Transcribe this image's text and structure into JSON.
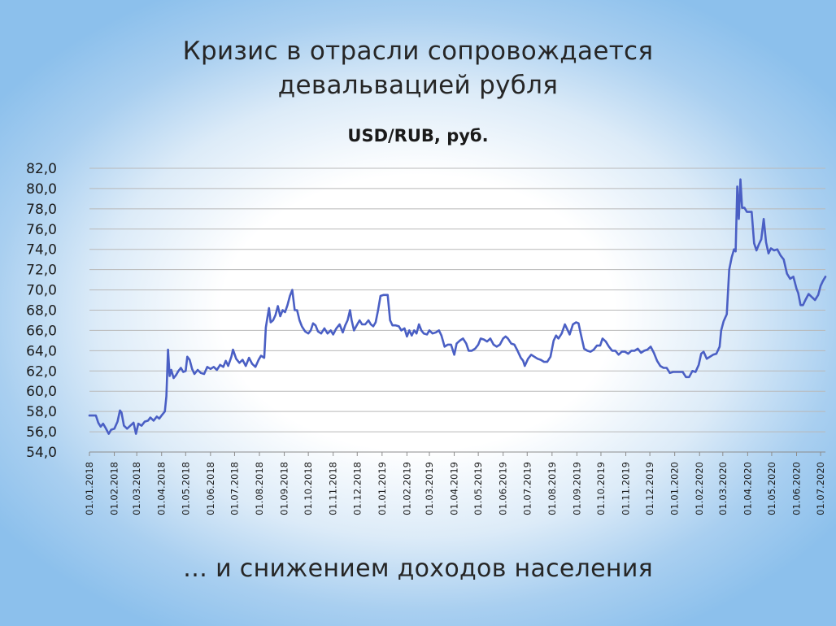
{
  "slide": {
    "title_line1": "Кризис в отрасли сопровождается",
    "title_line2": "девальвацией рубля",
    "footer": "… и снижением доходов населения"
  },
  "colors": {
    "line": "#4a5fc4",
    "grid": "#b9b9b9",
    "axis": "#8c8c8c"
  },
  "chart_data": {
    "type": "line",
    "title": "USD/RUB, руб.",
    "xlabel": "",
    "ylabel": "",
    "ylim": [
      54,
      82
    ],
    "ytick_step": 2,
    "xlim": [
      "2018-01-01",
      "2020-07-07"
    ],
    "grid": "horizontal",
    "legend": "none",
    "x_ticks": [
      "01.01.2018",
      "01.02.2018",
      "01.03.2018",
      "01.04.2018",
      "01.05.2018",
      "01.06.2018",
      "01.07.2018",
      "01.08.2018",
      "01.09.2018",
      "01.10.2018",
      "01.11.2018",
      "01.12.2018",
      "01.01.2019",
      "01.02.2019",
      "01.03.2019",
      "01.04.2019",
      "01.05.2019",
      "01.06.2019",
      "01.07.2019",
      "01.08.2019",
      "01.09.2019",
      "01.10.2019",
      "01.11.2019",
      "01.12.2019",
      "01.01.2020",
      "01.02.2020",
      "01.03.2020",
      "01.04.2020",
      "01.05.2020",
      "01.06.2020",
      "01.07.2020"
    ],
    "series": [
      {
        "points": [
          [
            "2018-01-01",
            57.6
          ],
          [
            "2018-01-09",
            57.6
          ],
          [
            "2018-01-12",
            56.9
          ],
          [
            "2018-01-15",
            56.5
          ],
          [
            "2018-01-18",
            56.8
          ],
          [
            "2018-01-21",
            56.4
          ],
          [
            "2018-01-25",
            55.8
          ],
          [
            "2018-01-28",
            56.2
          ],
          [
            "2018-02-01",
            56.3
          ],
          [
            "2018-02-05",
            57.0
          ],
          [
            "2018-02-08",
            58.1
          ],
          [
            "2018-02-10",
            57.9
          ],
          [
            "2018-02-13",
            56.6
          ],
          [
            "2018-02-17",
            56.3
          ],
          [
            "2018-02-21",
            56.6
          ],
          [
            "2018-02-25",
            56.9
          ],
          [
            "2018-02-28",
            55.8
          ],
          [
            "2018-03-03",
            56.8
          ],
          [
            "2018-03-07",
            56.6
          ],
          [
            "2018-03-11",
            57.0
          ],
          [
            "2018-03-15",
            57.1
          ],
          [
            "2018-03-18",
            57.4
          ],
          [
            "2018-03-22",
            57.1
          ],
          [
            "2018-03-26",
            57.5
          ],
          [
            "2018-03-29",
            57.3
          ],
          [
            "2018-04-01",
            57.6
          ],
          [
            "2018-04-05",
            58.0
          ],
          [
            "2018-04-07",
            59.5
          ],
          [
            "2018-04-09",
            64.1
          ],
          [
            "2018-04-11",
            61.5
          ],
          [
            "2018-04-13",
            62.1
          ],
          [
            "2018-04-16",
            61.3
          ],
          [
            "2018-04-19",
            61.6
          ],
          [
            "2018-04-22",
            62.0
          ],
          [
            "2018-04-25",
            62.3
          ],
          [
            "2018-04-28",
            61.9
          ],
          [
            "2018-05-01",
            62.0
          ],
          [
            "2018-05-03",
            63.4
          ],
          [
            "2018-05-06",
            63.1
          ],
          [
            "2018-05-09",
            62.2
          ],
          [
            "2018-05-12",
            61.7
          ],
          [
            "2018-05-16",
            62.1
          ],
          [
            "2018-05-20",
            61.8
          ],
          [
            "2018-05-24",
            61.7
          ],
          [
            "2018-05-28",
            62.4
          ],
          [
            "2018-06-01",
            62.2
          ],
          [
            "2018-06-05",
            62.4
          ],
          [
            "2018-06-09",
            62.1
          ],
          [
            "2018-06-13",
            62.6
          ],
          [
            "2018-06-17",
            62.4
          ],
          [
            "2018-06-20",
            63.0
          ],
          [
            "2018-06-23",
            62.5
          ],
          [
            "2018-06-27",
            63.4
          ],
          [
            "2018-06-29",
            64.1
          ],
          [
            "2018-07-03",
            63.2
          ],
          [
            "2018-07-07",
            62.8
          ],
          [
            "2018-07-11",
            63.1
          ],
          [
            "2018-07-15",
            62.5
          ],
          [
            "2018-07-19",
            63.3
          ],
          [
            "2018-07-23",
            62.7
          ],
          [
            "2018-07-27",
            62.4
          ],
          [
            "2018-07-31",
            63.1
          ],
          [
            "2018-08-03",
            63.5
          ],
          [
            "2018-08-07",
            63.3
          ],
          [
            "2018-08-09",
            66.3
          ],
          [
            "2018-08-11",
            67.3
          ],
          [
            "2018-08-13",
            68.2
          ],
          [
            "2018-08-15",
            66.8
          ],
          [
            "2018-08-18",
            67.0
          ],
          [
            "2018-08-21",
            67.5
          ],
          [
            "2018-08-24",
            68.4
          ],
          [
            "2018-08-27",
            67.4
          ],
          [
            "2018-08-30",
            68.0
          ],
          [
            "2018-09-02",
            67.8
          ],
          [
            "2018-09-05",
            68.5
          ],
          [
            "2018-09-08",
            69.4
          ],
          [
            "2018-09-11",
            70.0
          ],
          [
            "2018-09-14",
            68.0
          ],
          [
            "2018-09-17",
            68.0
          ],
          [
            "2018-09-20",
            67.0
          ],
          [
            "2018-09-23",
            66.4
          ],
          [
            "2018-09-27",
            65.9
          ],
          [
            "2018-10-01",
            65.7
          ],
          [
            "2018-10-04",
            66.0
          ],
          [
            "2018-10-07",
            66.7
          ],
          [
            "2018-10-10",
            66.5
          ],
          [
            "2018-10-13",
            65.9
          ],
          [
            "2018-10-17",
            65.7
          ],
          [
            "2018-10-21",
            66.2
          ],
          [
            "2018-10-25",
            65.7
          ],
          [
            "2018-10-29",
            66.0
          ],
          [
            "2018-11-01",
            65.6
          ],
          [
            "2018-11-05",
            66.2
          ],
          [
            "2018-11-09",
            66.6
          ],
          [
            "2018-11-13",
            65.8
          ],
          [
            "2018-11-16",
            66.5
          ],
          [
            "2018-11-19",
            67.0
          ],
          [
            "2018-11-22",
            68.0
          ],
          [
            "2018-11-24",
            67.0
          ],
          [
            "2018-11-27",
            66.0
          ],
          [
            "2018-12-01",
            66.6
          ],
          [
            "2018-12-04",
            67.0
          ],
          [
            "2018-12-07",
            66.6
          ],
          [
            "2018-12-11",
            66.6
          ],
          [
            "2018-12-15",
            67.0
          ],
          [
            "2018-12-18",
            66.6
          ],
          [
            "2018-12-21",
            66.4
          ],
          [
            "2018-12-24",
            66.8
          ],
          [
            "2018-12-27",
            68.0
          ],
          [
            "2018-12-30",
            69.4
          ],
          [
            "2019-01-03",
            69.5
          ],
          [
            "2019-01-08",
            69.5
          ],
          [
            "2019-01-11",
            67.0
          ],
          [
            "2019-01-14",
            66.5
          ],
          [
            "2019-01-18",
            66.5
          ],
          [
            "2019-01-22",
            66.4
          ],
          [
            "2019-01-25",
            66.0
          ],
          [
            "2019-01-29",
            66.2
          ],
          [
            "2019-02-01",
            65.4
          ],
          [
            "2019-02-04",
            66.0
          ],
          [
            "2019-02-07",
            65.5
          ],
          [
            "2019-02-10",
            66.0
          ],
          [
            "2019-02-13",
            65.7
          ],
          [
            "2019-02-16",
            66.6
          ],
          [
            "2019-02-19",
            66.0
          ],
          [
            "2019-02-22",
            65.7
          ],
          [
            "2019-02-26",
            65.6
          ],
          [
            "2019-03-01",
            66.0
          ],
          [
            "2019-03-05",
            65.7
          ],
          [
            "2019-03-09",
            65.8
          ],
          [
            "2019-03-13",
            66.0
          ],
          [
            "2019-03-16",
            65.5
          ],
          [
            "2019-03-20",
            64.4
          ],
          [
            "2019-03-24",
            64.6
          ],
          [
            "2019-03-28",
            64.6
          ],
          [
            "2019-04-01",
            63.6
          ],
          [
            "2019-04-04",
            64.7
          ],
          [
            "2019-04-08",
            65.0
          ],
          [
            "2019-04-12",
            65.2
          ],
          [
            "2019-04-16",
            64.7
          ],
          [
            "2019-04-19",
            64.0
          ],
          [
            "2019-04-23",
            64.0
          ],
          [
            "2019-04-27",
            64.2
          ],
          [
            "2019-05-01",
            64.6
          ],
          [
            "2019-05-04",
            65.2
          ],
          [
            "2019-05-08",
            65.1
          ],
          [
            "2019-05-12",
            64.9
          ],
          [
            "2019-05-16",
            65.2
          ],
          [
            "2019-05-20",
            64.6
          ],
          [
            "2019-05-24",
            64.4
          ],
          [
            "2019-05-28",
            64.6
          ],
          [
            "2019-06-01",
            65.2
          ],
          [
            "2019-06-04",
            65.4
          ],
          [
            "2019-06-07",
            65.2
          ],
          [
            "2019-06-11",
            64.7
          ],
          [
            "2019-06-15",
            64.6
          ],
          [
            "2019-06-19",
            64.0
          ],
          [
            "2019-06-23",
            63.3
          ],
          [
            "2019-06-26",
            63.0
          ],
          [
            "2019-06-28",
            62.5
          ],
          [
            "2019-07-02",
            63.2
          ],
          [
            "2019-07-06",
            63.6
          ],
          [
            "2019-07-10",
            63.4
          ],
          [
            "2019-07-14",
            63.2
          ],
          [
            "2019-07-18",
            63.1
          ],
          [
            "2019-07-22",
            62.9
          ],
          [
            "2019-07-26",
            62.9
          ],
          [
            "2019-07-30",
            63.4
          ],
          [
            "2019-08-03",
            65.0
          ],
          [
            "2019-08-06",
            65.5
          ],
          [
            "2019-08-09",
            65.2
          ],
          [
            "2019-08-13",
            65.7
          ],
          [
            "2019-08-17",
            66.6
          ],
          [
            "2019-08-20",
            66.1
          ],
          [
            "2019-08-23",
            65.6
          ],
          [
            "2019-08-27",
            66.6
          ],
          [
            "2019-08-31",
            66.8
          ],
          [
            "2019-09-03",
            66.7
          ],
          [
            "2019-09-06",
            65.6
          ],
          [
            "2019-09-10",
            64.2
          ],
          [
            "2019-09-14",
            64.0
          ],
          [
            "2019-09-18",
            63.9
          ],
          [
            "2019-09-22",
            64.1
          ],
          [
            "2019-09-26",
            64.5
          ],
          [
            "2019-09-30",
            64.5
          ],
          [
            "2019-10-03",
            65.2
          ],
          [
            "2019-10-07",
            64.9
          ],
          [
            "2019-10-11",
            64.4
          ],
          [
            "2019-10-15",
            64.0
          ],
          [
            "2019-10-19",
            64.0
          ],
          [
            "2019-10-23",
            63.6
          ],
          [
            "2019-10-27",
            63.9
          ],
          [
            "2019-10-31",
            63.9
          ],
          [
            "2019-11-04",
            63.7
          ],
          [
            "2019-11-08",
            64.0
          ],
          [
            "2019-11-12",
            64.0
          ],
          [
            "2019-11-16",
            64.2
          ],
          [
            "2019-11-20",
            63.8
          ],
          [
            "2019-11-24",
            64.0
          ],
          [
            "2019-11-28",
            64.1
          ],
          [
            "2019-12-02",
            64.4
          ],
          [
            "2019-12-06",
            63.8
          ],
          [
            "2019-12-10",
            63.0
          ],
          [
            "2019-12-14",
            62.5
          ],
          [
            "2019-12-18",
            62.3
          ],
          [
            "2019-12-22",
            62.3
          ],
          [
            "2019-12-26",
            61.8
          ],
          [
            "2019-12-30",
            61.9
          ],
          [
            "2020-01-03",
            61.9
          ],
          [
            "2020-01-07",
            61.9
          ],
          [
            "2020-01-11",
            61.9
          ],
          [
            "2020-01-15",
            61.4
          ],
          [
            "2020-01-19",
            61.4
          ],
          [
            "2020-01-23",
            62.0
          ],
          [
            "2020-01-27",
            61.9
          ],
          [
            "2020-01-31",
            62.6
          ],
          [
            "2020-02-03",
            63.7
          ],
          [
            "2020-02-06",
            63.9
          ],
          [
            "2020-02-10",
            63.2
          ],
          [
            "2020-02-14",
            63.4
          ],
          [
            "2020-02-18",
            63.6
          ],
          [
            "2020-02-22",
            63.7
          ],
          [
            "2020-02-26",
            64.4
          ],
          [
            "2020-02-28",
            66.0
          ],
          [
            "2020-03-02",
            66.9
          ],
          [
            "2020-03-06",
            67.6
          ],
          [
            "2020-03-09",
            72.0
          ],
          [
            "2020-03-12",
            73.2
          ],
          [
            "2020-03-15",
            74.0
          ],
          [
            "2020-03-17",
            73.8
          ],
          [
            "2020-03-19",
            80.2
          ],
          [
            "2020-03-21",
            77.0
          ],
          [
            "2020-03-23",
            80.9
          ],
          [
            "2020-03-25",
            78.1
          ],
          [
            "2020-03-28",
            78.1
          ],
          [
            "2020-03-31",
            77.7
          ],
          [
            "2020-04-03",
            77.7
          ],
          [
            "2020-04-06",
            77.7
          ],
          [
            "2020-04-09",
            74.6
          ],
          [
            "2020-04-12",
            73.9
          ],
          [
            "2020-04-15",
            74.5
          ],
          [
            "2020-04-18",
            75.0
          ],
          [
            "2020-04-21",
            77.0
          ],
          [
            "2020-04-24",
            74.7
          ],
          [
            "2020-04-27",
            73.6
          ],
          [
            "2020-04-30",
            74.1
          ],
          [
            "2020-05-04",
            73.9
          ],
          [
            "2020-05-08",
            74.0
          ],
          [
            "2020-05-12",
            73.4
          ],
          [
            "2020-05-16",
            73.0
          ],
          [
            "2020-05-20",
            71.6
          ],
          [
            "2020-05-24",
            71.1
          ],
          [
            "2020-05-28",
            71.3
          ],
          [
            "2020-06-01",
            70.1
          ],
          [
            "2020-06-03",
            69.7
          ],
          [
            "2020-06-06",
            68.5
          ],
          [
            "2020-06-09",
            68.5
          ],
          [
            "2020-06-12",
            69.0
          ],
          [
            "2020-06-16",
            69.6
          ],
          [
            "2020-06-20",
            69.3
          ],
          [
            "2020-06-24",
            69.0
          ],
          [
            "2020-06-28",
            69.5
          ],
          [
            "2020-07-01",
            70.4
          ],
          [
            "2020-07-04",
            70.9
          ],
          [
            "2020-07-07",
            71.3
          ]
        ]
      }
    ]
  }
}
